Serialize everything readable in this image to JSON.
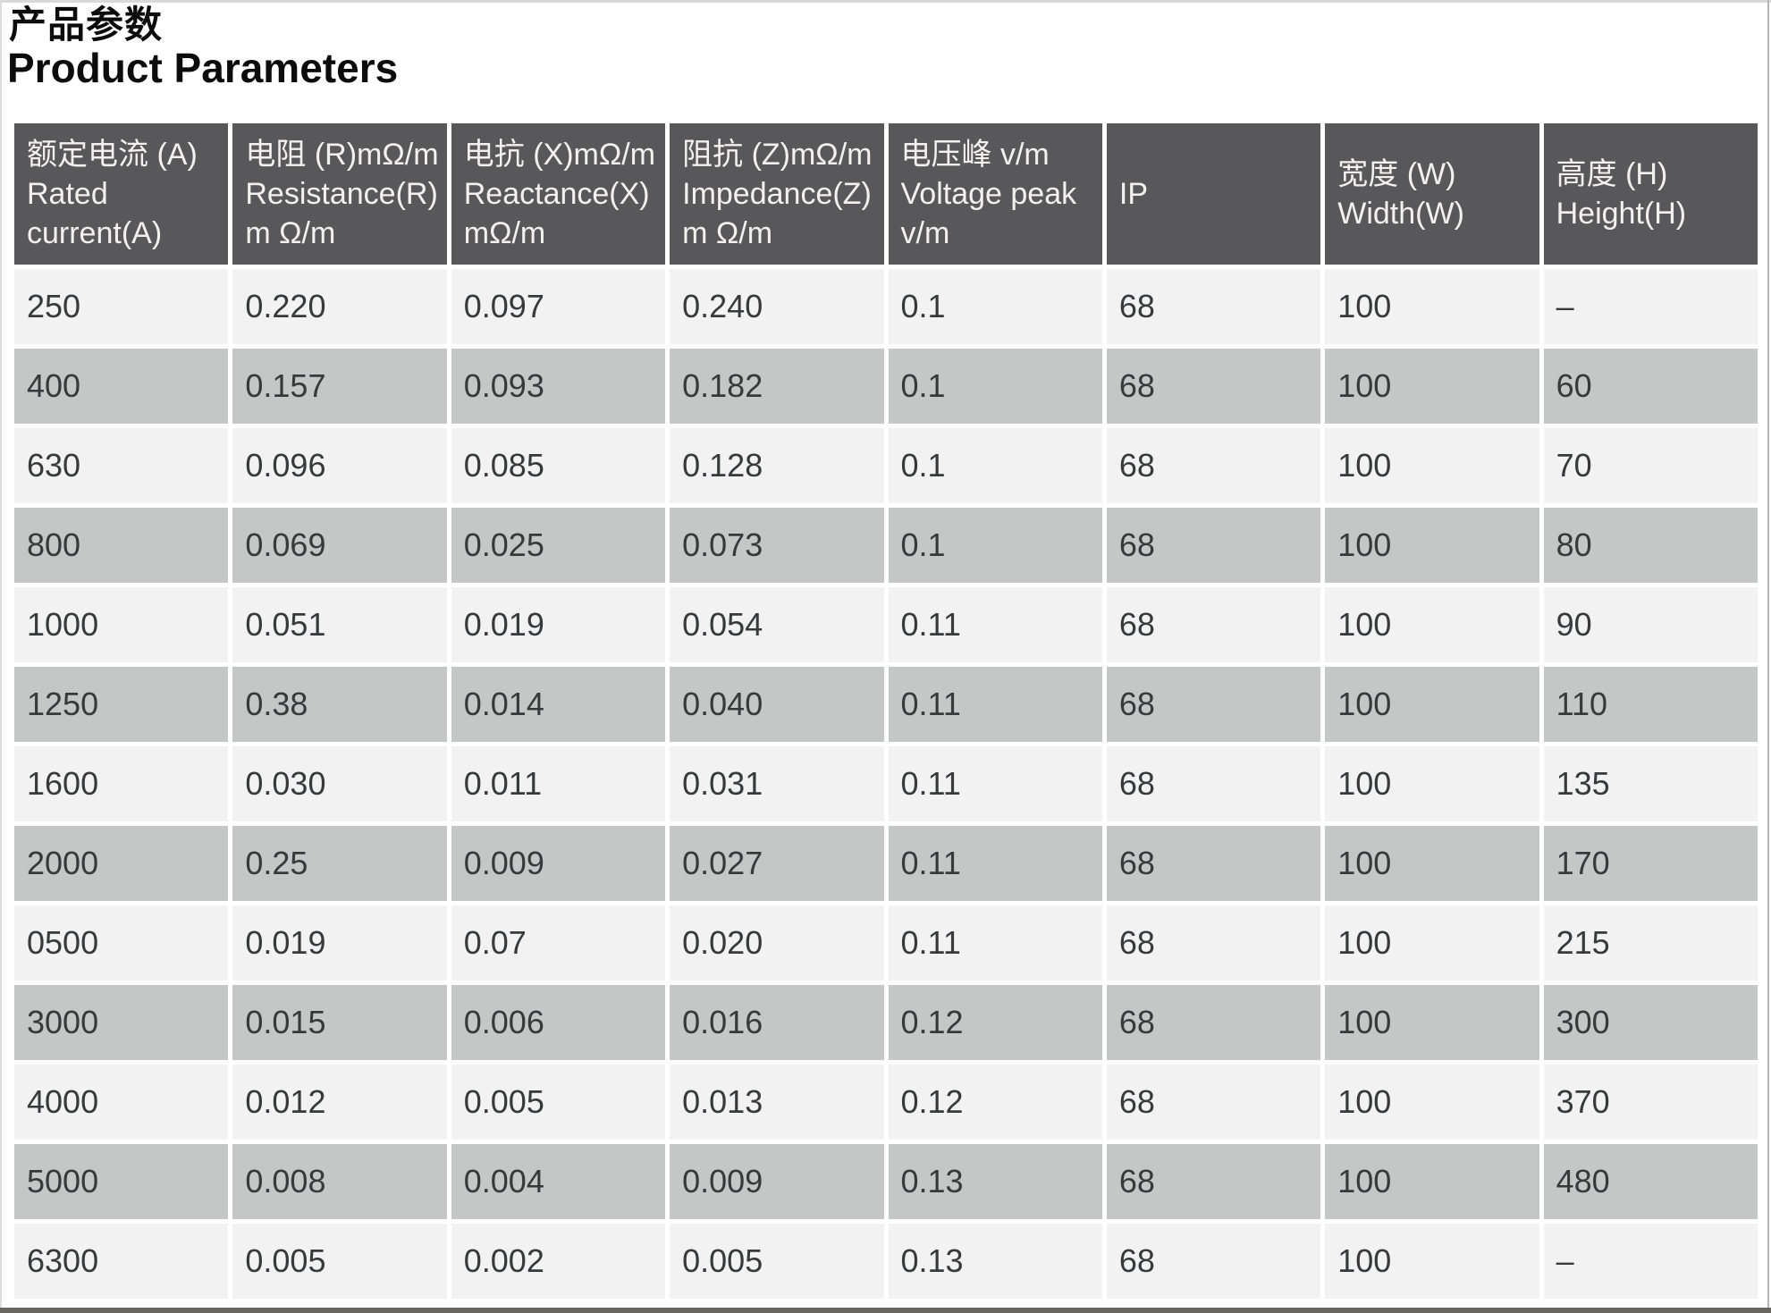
{
  "page": {
    "title_zh": "产品参数",
    "title_en": "Product Parameters"
  },
  "colors": {
    "header_bg": "#58585b",
    "header_text": "#f3f1ee",
    "row_light": "#f2f2f3",
    "row_dark": "#c5c6c6",
    "cell_text": "#37393c",
    "bottom_bar": "#66665f"
  },
  "table": {
    "columns": [
      {
        "id": "rated-current",
        "lines": [
          "额定电流 (A)",
          "Rated",
          "current(A)"
        ]
      },
      {
        "id": "resistance",
        "lines": [
          "电阻 (R)mΩ/m",
          "Resistance(R)",
          "m Ω/m"
        ]
      },
      {
        "id": "reactance",
        "lines": [
          "电抗 (X)mΩ/m",
          "Reactance(X)",
          "mΩ/m"
        ]
      },
      {
        "id": "impedance",
        "lines": [
          "阻抗 (Z)mΩ/m",
          "Impedance(Z)",
          "m Ω/m"
        ]
      },
      {
        "id": "voltage-peak",
        "lines": [
          "电压峰 v/m",
          "Voltage peak",
          "v/m"
        ]
      },
      {
        "id": "ip",
        "lines": [
          "IP"
        ]
      },
      {
        "id": "width",
        "lines": [
          "宽度 (W)",
          "Width(W)"
        ]
      },
      {
        "id": "height",
        "lines": [
          "高度 (H)",
          "Height(H)"
        ]
      }
    ],
    "rows": [
      [
        "250",
        "0.220",
        "0.097",
        "0.240",
        "0.1",
        "68",
        "100",
        "–"
      ],
      [
        "400",
        "0.157",
        "0.093",
        "0.182",
        "0.1",
        "68",
        "100",
        "60"
      ],
      [
        "630",
        "0.096",
        "0.085",
        "0.128",
        "0.1",
        "68",
        "100",
        "70"
      ],
      [
        "800",
        "0.069",
        "0.025",
        "0.073",
        "0.1",
        "68",
        "100",
        "80"
      ],
      [
        "1000",
        "0.051",
        "0.019",
        "0.054",
        "0.11",
        "68",
        "100",
        "90"
      ],
      [
        "1250",
        "0.38",
        "0.014",
        "0.040",
        "0.11",
        "68",
        "100",
        "110"
      ],
      [
        "1600",
        "0.030",
        "0.011",
        "0.031",
        "0.11",
        "68",
        "100",
        "135"
      ],
      [
        "2000",
        "0.25",
        "0.009",
        "0.027",
        "0.11",
        "68",
        "100",
        "170"
      ],
      [
        "0500",
        "0.019",
        "0.07",
        "0.020",
        "0.11",
        "68",
        "100",
        "215"
      ],
      [
        "3000",
        "0.015",
        "0.006",
        "0.016",
        "0.12",
        "68",
        "100",
        "300"
      ],
      [
        "4000",
        "0.012",
        "0.005",
        "0.013",
        "0.12",
        "68",
        "100",
        "370"
      ],
      [
        "5000",
        "0.008",
        "0.004",
        "0.009",
        "0.13",
        "68",
        "100",
        "480"
      ],
      [
        "6300",
        "0.005",
        "0.002",
        "0.005",
        "0.13",
        "68",
        "100",
        "–"
      ]
    ]
  }
}
